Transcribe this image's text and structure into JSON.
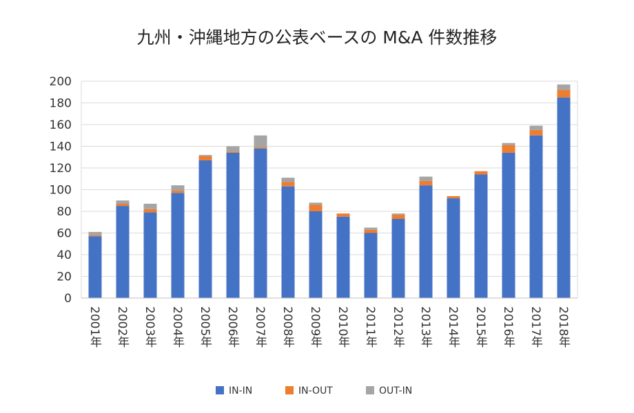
{
  "chart_data": {
    "type": "bar",
    "stacked": true,
    "title": "九州・沖縄地方の公表ベースの M&A 件数推移",
    "xlabel": "",
    "ylabel": "",
    "ylim": [
      0,
      200
    ],
    "yticks": [
      0,
      20,
      40,
      60,
      80,
      100,
      120,
      140,
      160,
      180,
      200
    ],
    "grid": true,
    "legend_position": "bottom",
    "categories": [
      "2001年",
      "2002年",
      "2003年",
      "2004年",
      "2005年",
      "2006年",
      "2007年",
      "2008年",
      "2009年",
      "2010年",
      "2011年",
      "2012年",
      "2013年",
      "2014年",
      "2015年",
      "2016年",
      "2017年",
      "2018年"
    ],
    "series": [
      {
        "name": "IN-IN",
        "color": "#4472C4",
        "values": [
          57,
          85,
          79,
          97,
          127,
          134,
          138,
          103,
          80,
          75,
          60,
          73,
          104,
          92,
          114,
          134,
          150,
          185
        ]
      },
      {
        "name": "IN-OUT",
        "color": "#ED7D31",
        "values": [
          1,
          2,
          3,
          2,
          4,
          1,
          1,
          4,
          6,
          3,
          3,
          4,
          4,
          2,
          3,
          7,
          5,
          7
        ]
      },
      {
        "name": "OUT-IN",
        "color": "#A5A5A5",
        "values": [
          3,
          3,
          5,
          5,
          1,
          5,
          11,
          4,
          2,
          0,
          2,
          1,
          4,
          0,
          0,
          2,
          4,
          5
        ]
      }
    ]
  }
}
